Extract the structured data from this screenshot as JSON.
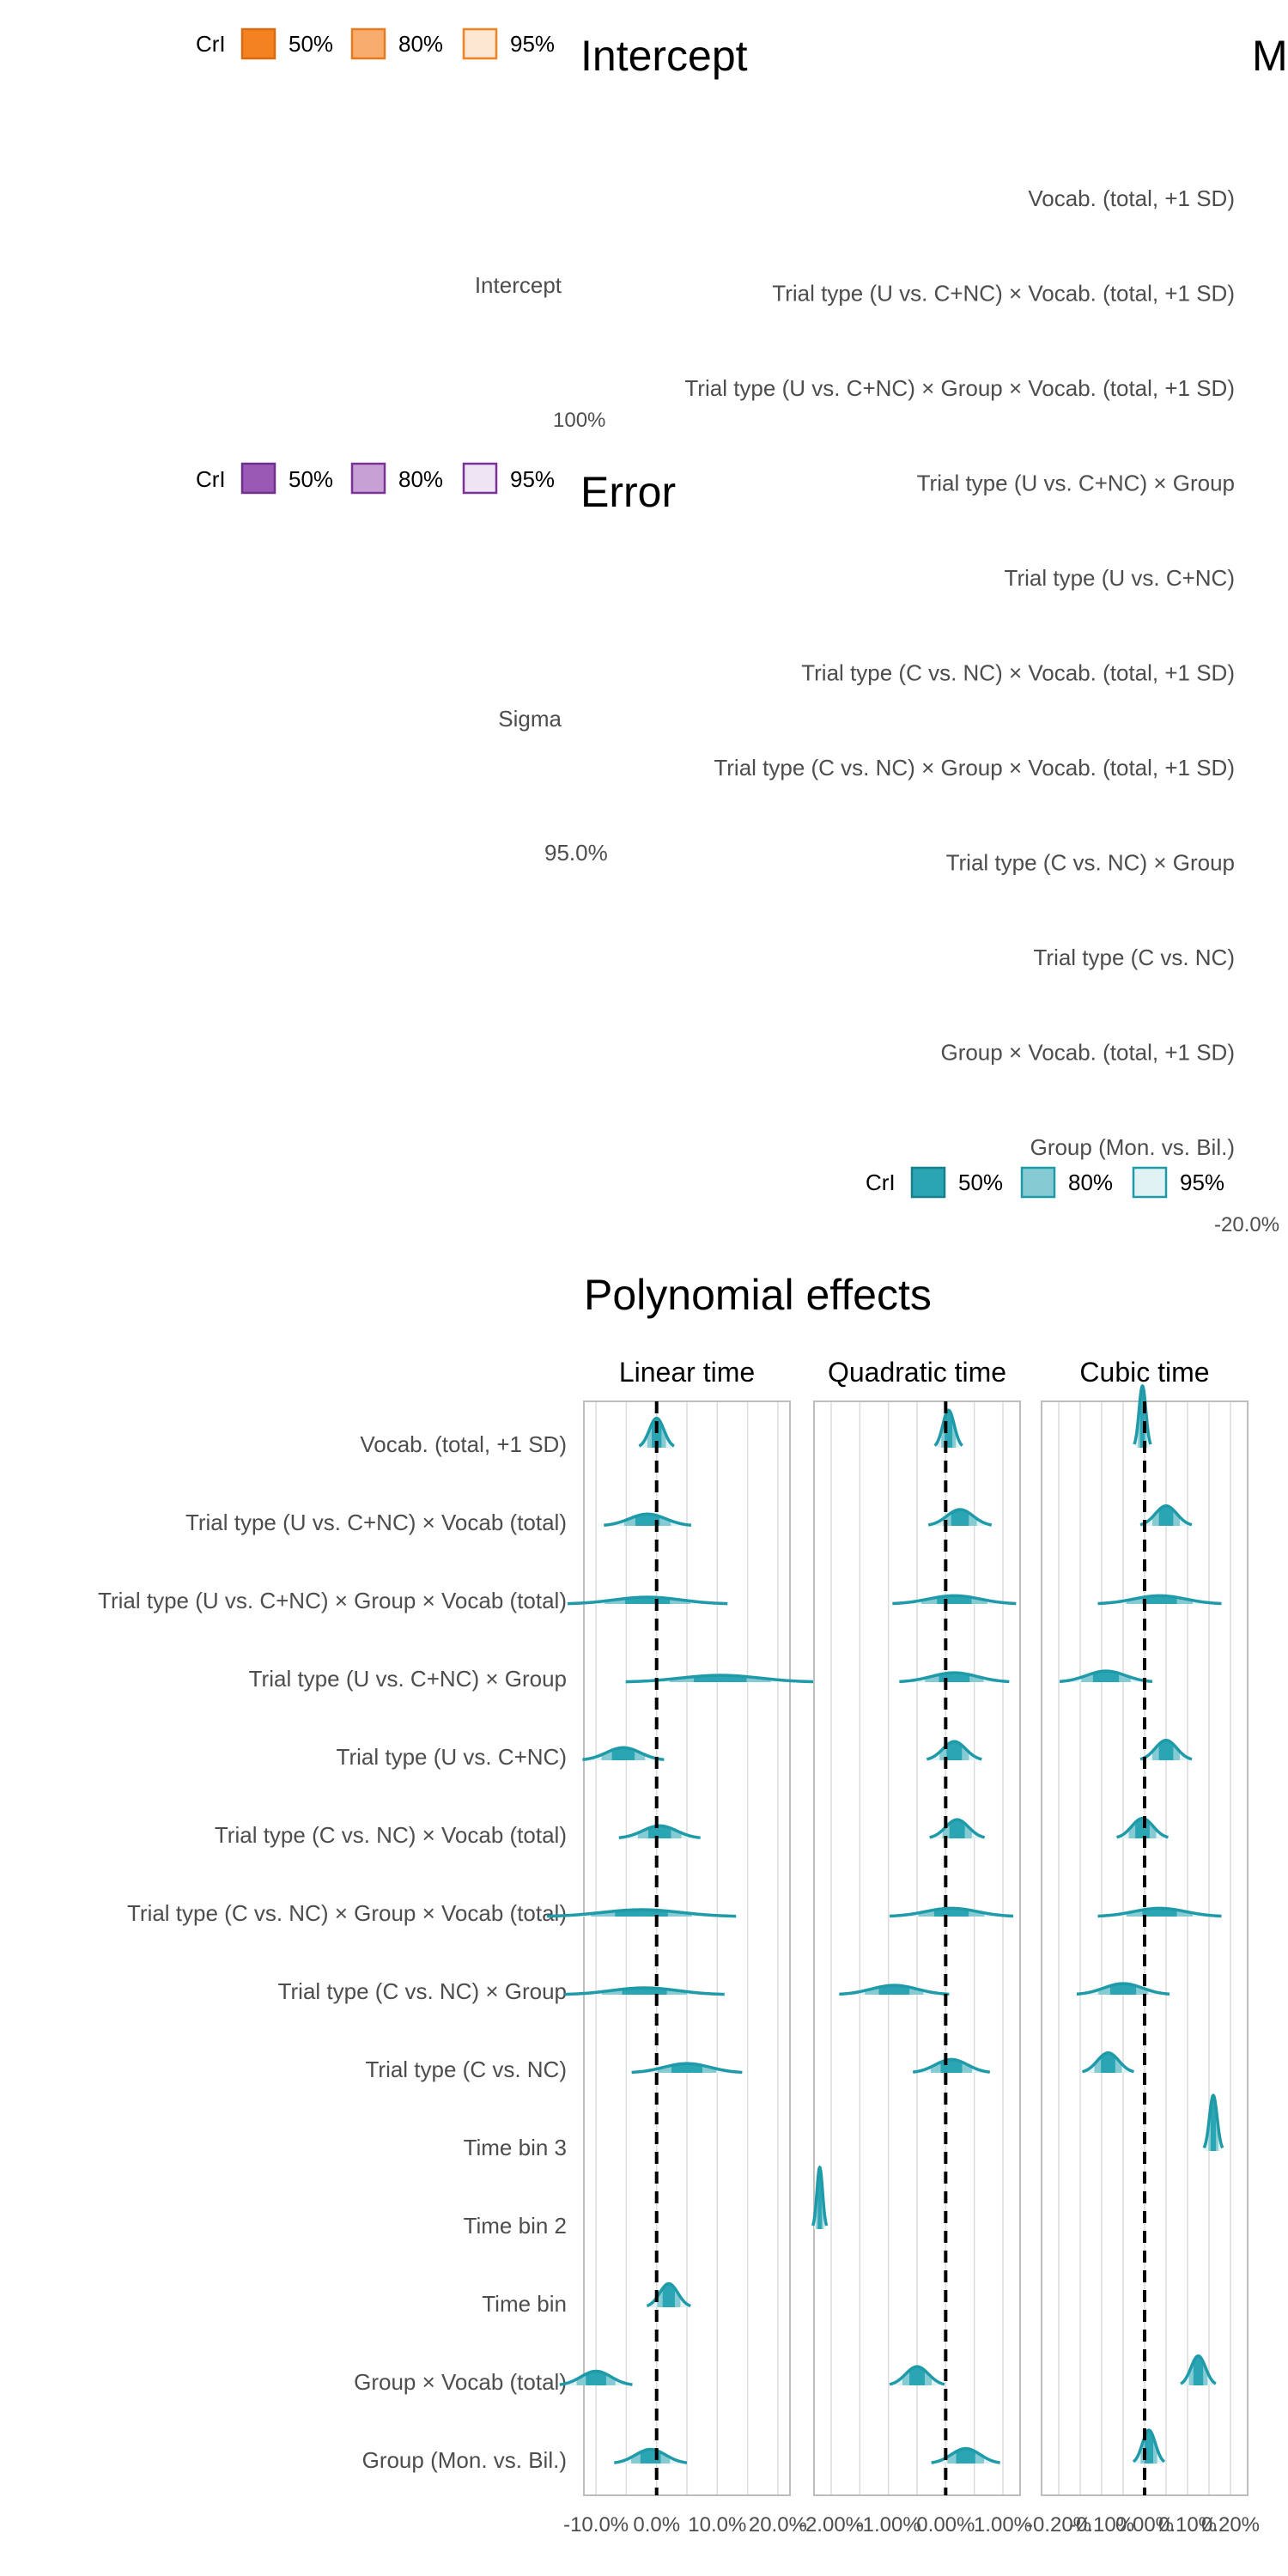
{
  "panels": {
    "intercept": {
      "title": "Intercept",
      "legend": {
        "label": "CrI",
        "levels": [
          "50%",
          "80%",
          "95%"
        ],
        "color": "#f58220"
      },
      "rows": [
        "Intercept"
      ],
      "axis_overlap": "100%"
    },
    "error": {
      "title": "Error",
      "legend": {
        "label": "CrI",
        "levels": [
          "50%",
          "80%",
          "95%"
        ],
        "color": "#7b3294"
      },
      "rows": [
        "Sigma"
      ],
      "axis_overlap": "95.0%"
    },
    "main": {
      "title": "M",
      "legend": {
        "label": "CrI",
        "levels": [
          "50%",
          "80%",
          "95%"
        ],
        "color": "#1f9aa8"
      },
      "rows": [
        "Vocab. (total, +1 SD)",
        "Trial type (U vs. C+NC) × Vocab. (total, +1 SD)",
        "Trial type (U vs. C+NC) × Group × Vocab. (total, +1 SD)",
        "Trial type (U vs. C+NC) × Group",
        "Trial type (U vs. C+NC)",
        "Trial type (C vs. NC) × Vocab. (total, +1 SD)",
        "Trial type (C vs. NC) × Group × Vocab. (total, +1 SD)",
        "Trial type (C vs. NC) × Group",
        "Trial type (C vs. NC)",
        "Group × Vocab. (total, +1 SD)",
        "Group (Mon. vs. Bil.)"
      ],
      "axis_overlap": "-20.0%"
    }
  },
  "chart_data": {
    "type": "ridgeline",
    "title": "Polynomial effects",
    "facets": [
      "Linear time",
      "Quadratic time",
      "Cubic time"
    ],
    "color": "#1f9aa8",
    "reference_line": 0,
    "categories": [
      "Vocab. (total, +1 SD)",
      "Trial type (U vs. C+NC) × Vocab (total)",
      "Trial type (U vs. C+NC) × Group × Vocab (total)",
      "Trial type (U vs. C+NC) × Group",
      "Trial type (U vs. C+NC)",
      "Trial type (C vs. NC) × Vocab (total)",
      "Trial type (C vs. NC) × Group × Vocab (total)",
      "Trial type (C vs. NC) × Group",
      "Trial type (C vs. NC)",
      "Time bin 3",
      "Time bin 2",
      "Time bin",
      "Group × Vocab (total)",
      "Group (Mon. vs. Bil.)"
    ],
    "x_ticks": [
      [
        "-10.0%",
        "0.0%",
        "10.0%",
        "20.0%"
      ],
      [
        "-2.00%",
        "-1.00%",
        "0.00%",
        "1.00%"
      ],
      [
        "-0.20%",
        "-0.10%",
        "0.00%",
        "0.10%",
        "0.20%"
      ]
    ],
    "xlim": [
      [
        -12,
        22
      ],
      [
        -2.3,
        1.3
      ],
      [
        -0.24,
        0.24
      ]
    ],
    "series": [
      {
        "name": "Linear time",
        "median": [
          0,
          -1.5,
          -1.5,
          10.5,
          -5.5,
          0.5,
          -2.5,
          -2,
          5,
          0,
          0,
          2,
          -10,
          -1
        ],
        "sd": [
          1.2,
          3,
          5.5,
          6.5,
          2.8,
          2.8,
          6.5,
          5.5,
          3.8,
          0,
          0,
          1.5,
          2.5,
          2.5
        ]
      },
      {
        "name": "Quadratic time",
        "median": [
          0.05,
          0.25,
          0.15,
          0.15,
          0.15,
          0.2,
          0.1,
          -0.9,
          0.1,
          0,
          -2.2,
          0,
          -0.5,
          0.35
        ],
        "sd": [
          0.1,
          0.23,
          0.45,
          0.4,
          0.2,
          0.2,
          0.45,
          0.4,
          0.28,
          0,
          0.05,
          0,
          0.2,
          0.25
        ]
      },
      {
        "name": "Cubic time",
        "median": [
          -0.005,
          0.05,
          0.035,
          -0.09,
          0.05,
          -0.005,
          0.035,
          -0.05,
          -0.085,
          0.16,
          0,
          0,
          0.125,
          0.01
        ],
        "sd": [
          0.008,
          0.025,
          0.06,
          0.045,
          0.025,
          0.025,
          0.06,
          0.045,
          0.025,
          0.009,
          0,
          0,
          0.017,
          0.015
        ]
      }
    ]
  },
  "colors": {
    "accent": "#1f9aa8",
    "intercept": "#f58220",
    "error": "#7b3294",
    "grid": "#dcdcdc",
    "text": "#4d4d4d"
  }
}
